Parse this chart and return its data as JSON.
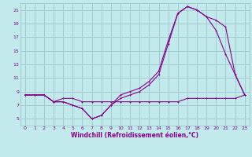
{
  "xlabel": "Windchill (Refroidissement éolien,°C)",
  "bg_color": "#c2eaed",
  "grid_color": "#a0cdd1",
  "line_color": "#880088",
  "xlim": [
    -0.5,
    23.5
  ],
  "ylim": [
    4.0,
    22.0
  ],
  "xticks": [
    0,
    1,
    2,
    3,
    4,
    5,
    6,
    7,
    8,
    9,
    10,
    11,
    12,
    13,
    14,
    15,
    16,
    17,
    18,
    19,
    20,
    21,
    22,
    23
  ],
  "yticks": [
    5,
    7,
    9,
    11,
    13,
    15,
    17,
    19,
    21
  ],
  "line1_x": [
    0,
    1,
    2,
    3,
    4,
    5,
    6,
    7,
    8,
    9,
    10,
    11,
    12,
    13,
    14,
    15,
    16,
    17,
    18,
    19,
    20,
    21,
    22,
    23
  ],
  "line1_y": [
    8.5,
    8.5,
    8.5,
    7.5,
    7.5,
    7.0,
    6.5,
    5.0,
    5.5,
    7.0,
    8.0,
    8.5,
    9.0,
    10.0,
    11.5,
    16.0,
    20.5,
    21.5,
    21.0,
    20.0,
    19.5,
    18.5,
    11.5,
    8.5
  ],
  "line2_x": [
    0,
    1,
    2,
    3,
    4,
    5,
    6,
    7,
    8,
    9,
    10,
    11,
    12,
    13,
    14,
    15,
    16,
    17,
    18,
    19,
    20,
    21,
    22,
    23
  ],
  "line2_y": [
    8.5,
    8.5,
    8.5,
    7.5,
    7.5,
    7.0,
    6.5,
    5.0,
    5.5,
    7.0,
    8.5,
    9.0,
    9.5,
    10.5,
    12.0,
    16.5,
    20.5,
    21.5,
    21.0,
    20.0,
    18.0,
    14.5,
    11.5,
    8.5
  ],
  "line3_x": [
    0,
    1,
    2,
    3,
    4,
    5,
    6,
    7,
    8,
    9,
    10,
    11,
    12,
    13,
    14,
    15,
    16,
    17,
    18,
    19,
    20,
    21,
    22,
    23
  ],
  "line3_y": [
    8.5,
    8.5,
    8.5,
    7.5,
    8.0,
    8.0,
    7.5,
    7.5,
    7.5,
    7.5,
    7.5,
    7.5,
    7.5,
    7.5,
    7.5,
    7.5,
    7.5,
    8.0,
    8.0,
    8.0,
    8.0,
    8.0,
    8.0,
    8.5
  ]
}
